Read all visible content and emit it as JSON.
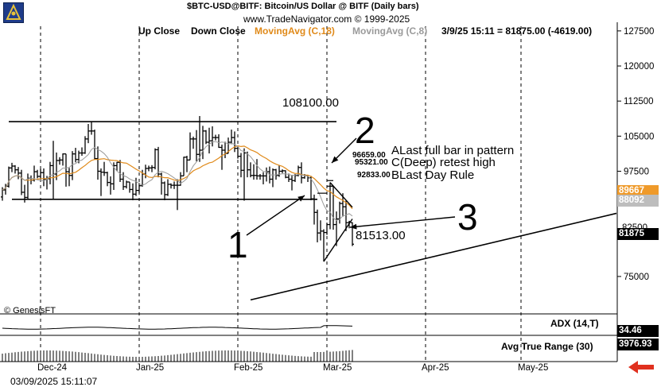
{
  "header": {
    "title": "$BTC-USD@BITF:  Bitcoin/US Dollar @ BITF  (Daily bars)",
    "subtitle": "www.TradeNavigator.com © 1999-2025",
    "quote": "3/9/25 15:11 = 81875.00 (-4619.00)"
  },
  "legend": {
    "up": "Up Close",
    "down": "Down Close",
    "ma18": "MovingAvg (C,18)",
    "ma8": "MovingAvg (C,8)"
  },
  "colors": {
    "ma18": "#e08a1a",
    "ma8": "#9a9a9a",
    "tag_orange": "#ef9a2a",
    "arrow": "#e0301e"
  },
  "annotations": {
    "level_high": "108100.00",
    "level_low": "81513.00",
    "label_1": "1",
    "label_2": "2",
    "label_3": "3",
    "a_price": "96659.00",
    "c_price": "95321.00",
    "b_price": "92833.00",
    "a_text": "ALast full bar in pattern",
    "c_text": "C(Deep) retest high",
    "b_text": "BLast Day Rule",
    "copyright": "© GenesisFT"
  },
  "price_tags": {
    "orange": "89667",
    "gray": "88092",
    "last": "81875",
    "hidden_tick": "82500"
  },
  "indicators": {
    "adx_label": "ADX (14,T)",
    "adx_value": "34.46",
    "atr_label": "Avg True Range (30)",
    "atr_value": "3976.93"
  },
  "footer": {
    "timestamp": "03/09/2025 15:11:07"
  },
  "chart_data": {
    "type": "bar",
    "title": "$BTC-USD@BITF:  Bitcoin/US Dollar @ BITF  (Daily bars)",
    "y_ticks": [
      127500,
      120000,
      112500,
      105000,
      97500,
      75000
    ],
    "ylim": [
      67000,
      128500
    ],
    "x_ticks": [
      "Dec-24",
      "Jan-25",
      "Feb-25",
      "Mar-25",
      "Apr-25",
      "May-25"
    ],
    "x_tick_dates": [
      "2024-12-01",
      "2025-01-01",
      "2025-02-01",
      "2025-03-01",
      "2025-04-01",
      "2025-05-01"
    ],
    "xlim": [
      "2024-11-19",
      "2025-05-31"
    ],
    "bars": [
      [
        "2024-11-19",
        92000,
        94100,
        91200,
        93500
      ],
      [
        "2024-11-20",
        93500,
        94800,
        92500,
        94300
      ],
      [
        "2024-11-21",
        94300,
        98500,
        94000,
        98200
      ],
      [
        "2024-11-22",
        98200,
        99300,
        97300,
        98600
      ],
      [
        "2024-11-23",
        98600,
        98800,
        97000,
        97800
      ],
      [
        "2024-11-24",
        97800,
        98400,
        95800,
        97100
      ],
      [
        "2024-11-25",
        97100,
        97800,
        92400,
        93000
      ],
      [
        "2024-11-26",
        93000,
        94600,
        90800,
        91900
      ],
      [
        "2024-11-27",
        91900,
        97000,
        91500,
        96000
      ],
      [
        "2024-11-28",
        96000,
        96600,
        94700,
        95600
      ],
      [
        "2024-11-29",
        95600,
        98700,
        95300,
        97400
      ],
      [
        "2024-11-30",
        97400,
        97800,
        96000,
        96400
      ],
      [
        "2024-12-01",
        96400,
        98000,
        95800,
        97200
      ],
      [
        "2024-12-02",
        97200,
        98100,
        94300,
        95800
      ],
      [
        "2024-12-03",
        95800,
        96500,
        93600,
        95900
      ],
      [
        "2024-12-04",
        95900,
        99500,
        94700,
        98700
      ],
      [
        "2024-12-05",
        98700,
        104000,
        91500,
        96900
      ],
      [
        "2024-12-06",
        96900,
        101500,
        95600,
        99800
      ],
      [
        "2024-12-07",
        99800,
        100500,
        98900,
        99900
      ],
      [
        "2024-12-08",
        99900,
        101300,
        98700,
        101200
      ],
      [
        "2024-12-09",
        101200,
        101200,
        94200,
        97400
      ],
      [
        "2024-12-10",
        97400,
        98200,
        94300,
        96600
      ],
      [
        "2024-12-11",
        96600,
        101800,
        95600,
        101200
      ],
      [
        "2024-12-12",
        101200,
        102500,
        99400,
        100000
      ],
      [
        "2024-12-13",
        100000,
        101900,
        99200,
        101400
      ],
      [
        "2024-12-14",
        101400,
        102600,
        100800,
        101400
      ],
      [
        "2024-12-15",
        101400,
        105000,
        101200,
        104400
      ],
      [
        "2024-12-16",
        104400,
        107600,
        103500,
        106100
      ],
      [
        "2024-12-17",
        106100,
        108100,
        105300,
        106100
      ],
      [
        "2024-12-18",
        106100,
        106400,
        100000,
        100200
      ],
      [
        "2024-12-19",
        100200,
        102800,
        95700,
        97500
      ],
      [
        "2024-12-20",
        97500,
        98100,
        92200,
        97300
      ],
      [
        "2024-12-21",
        97300,
        99500,
        96500,
        97200
      ],
      [
        "2024-12-22",
        97200,
        97400,
        94300,
        95100
      ],
      [
        "2024-12-23",
        95100,
        96400,
        92500,
        94800
      ],
      [
        "2024-12-24",
        94800,
        99400,
        93500,
        98700
      ],
      [
        "2024-12-25",
        98700,
        99500,
        97600,
        99400
      ],
      [
        "2024-12-26",
        99400,
        99900,
        95200,
        95800
      ],
      [
        "2024-12-27",
        95800,
        97300,
        93500,
        94200
      ],
      [
        "2024-12-28",
        94200,
        95500,
        93800,
        95200
      ],
      [
        "2024-12-29",
        95200,
        95200,
        92900,
        93600
      ],
      [
        "2024-12-30",
        93600,
        94900,
        91300,
        92600
      ],
      [
        "2024-12-31",
        92600,
        96100,
        92200,
        93400
      ],
      [
        "2025-01-01",
        93400,
        95000,
        92800,
        94400
      ],
      [
        "2025-01-02",
        94400,
        97800,
        94200,
        96900
      ],
      [
        "2025-01-03",
        96900,
        98900,
        96000,
        98100
      ],
      [
        "2025-01-04",
        98100,
        98700,
        97500,
        98200
      ],
      [
        "2025-01-05",
        98200,
        98800,
        97300,
        98300
      ],
      [
        "2025-01-06",
        98300,
        102400,
        97900,
        102100
      ],
      [
        "2025-01-07",
        102100,
        102700,
        96200,
        96900
      ],
      [
        "2025-01-08",
        96900,
        97200,
        92500,
        95000
      ],
      [
        "2025-01-09",
        95000,
        95300,
        91300,
        92500
      ],
      [
        "2025-01-10",
        92500,
        95800,
        92200,
        94700
      ],
      [
        "2025-01-11",
        94700,
        94900,
        93800,
        94500
      ],
      [
        "2025-01-12",
        94500,
        95300,
        93700,
        94500
      ],
      [
        "2025-01-13",
        94500,
        95800,
        89200,
        94500
      ],
      [
        "2025-01-14",
        94500,
        97300,
        94400,
        96500
      ],
      [
        "2025-01-15",
        96500,
        100600,
        96500,
        100500
      ],
      [
        "2025-01-16",
        100500,
        100800,
        97300,
        99900
      ],
      [
        "2025-01-17",
        99900,
        105800,
        99900,
        104400
      ],
      [
        "2025-01-18",
        104400,
        104900,
        102300,
        104400
      ],
      [
        "2025-01-19",
        104400,
        106300,
        99600,
        101100
      ],
      [
        "2025-01-20",
        101100,
        109300,
        99500,
        102000
      ],
      [
        "2025-01-21",
        102000,
        107200,
        100100,
        106100
      ],
      [
        "2025-01-22",
        106100,
        106300,
        103300,
        103700
      ],
      [
        "2025-01-23",
        103700,
        106800,
        101300,
        104000
      ],
      [
        "2025-01-24",
        104000,
        107100,
        102800,
        104700
      ],
      [
        "2025-01-25",
        104700,
        105300,
        104100,
        104700
      ],
      [
        "2025-01-26",
        104700,
        105400,
        102500,
        102600
      ],
      [
        "2025-01-27",
        102600,
        103200,
        97800,
        102000
      ],
      [
        "2025-01-28",
        102000,
        103800,
        100300,
        101300
      ],
      [
        "2025-01-29",
        101300,
        104700,
        101300,
        103700
      ],
      [
        "2025-01-30",
        103700,
        106400,
        103300,
        104700
      ],
      [
        "2025-01-31",
        104700,
        106000,
        101600,
        102400
      ],
      [
        "2025-02-01",
        102400,
        102800,
        100200,
        100700
      ],
      [
        "2025-02-02",
        100700,
        101400,
        96200,
        97700
      ],
      [
        "2025-02-03",
        97700,
        102400,
        91200,
        101400
      ],
      [
        "2025-02-04",
        101400,
        101700,
        96200,
        97800
      ],
      [
        "2025-02-05",
        97800,
        99400,
        96200,
        96600
      ],
      [
        "2025-02-06",
        96600,
        99000,
        95700,
        96600
      ],
      [
        "2025-02-07",
        96600,
        100100,
        95700,
        96500
      ],
      [
        "2025-02-08",
        96500,
        96900,
        95700,
        96500
      ],
      [
        "2025-02-09",
        96500,
        97300,
        94700,
        96500
      ],
      [
        "2025-02-10",
        96500,
        98300,
        95300,
        97400
      ],
      [
        "2025-02-11",
        97400,
        98500,
        94900,
        95800
      ],
      [
        "2025-02-12",
        95800,
        98100,
        94100,
        97800
      ],
      [
        "2025-02-13",
        97800,
        98000,
        95700,
        96600
      ],
      [
        "2025-02-14",
        96600,
        98800,
        96300,
        97500
      ],
      [
        "2025-02-15",
        97500,
        97900,
        97100,
        97600
      ],
      [
        "2025-02-16",
        97600,
        97700,
        96000,
        96200
      ],
      [
        "2025-02-17",
        96200,
        97000,
        95200,
        95800
      ],
      [
        "2025-02-18",
        95800,
        96700,
        93400,
        95500
      ],
      [
        "2025-02-19",
        95500,
        96900,
        95200,
        96600
      ],
      [
        "2025-02-20",
        96600,
        98700,
        96400,
        98300
      ],
      [
        "2025-02-21",
        98300,
        99400,
        94900,
        96100
      ],
      [
        "2025-02-22",
        96100,
        96900,
        95900,
        96600
      ],
      [
        "2025-02-23",
        96600,
        96700,
        95200,
        96100
      ],
      [
        "2025-02-24",
        96100,
        96500,
        91300,
        91600
      ],
      [
        "2025-02-25",
        91600,
        92500,
        86100,
        88700
      ],
      [
        "2025-02-26",
        88700,
        89300,
        82300,
        84300
      ],
      [
        "2025-02-27",
        84300,
        87000,
        82700,
        84700
      ],
      [
        "2025-02-28",
        84700,
        85100,
        78200,
        84400
      ],
      [
        "2025-03-01",
        84400,
        86500,
        83900,
        86100
      ],
      [
        "2025-03-02",
        86100,
        95100,
        85100,
        94300
      ],
      [
        "2025-03-03",
        94300,
        94400,
        85000,
        86100
      ],
      [
        "2025-03-04",
        86100,
        88900,
        81500,
        87300
      ],
      [
        "2025-03-05",
        87300,
        91000,
        86300,
        90600
      ],
      [
        "2025-03-06",
        90600,
        92800,
        87800,
        89900
      ],
      [
        "2025-03-07",
        89900,
        91200,
        84700,
        86500
      ],
      [
        "2025-03-08",
        86500,
        86900,
        85300,
        86700
      ],
      [
        "2025-03-09",
        86500,
        86600,
        81500,
        81900
      ]
    ]
  }
}
